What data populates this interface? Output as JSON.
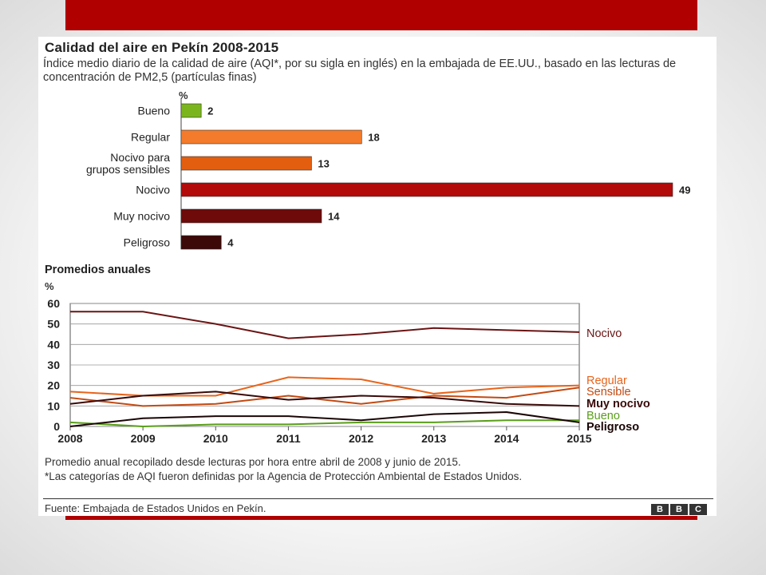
{
  "header": {
    "title": "Calidad del aire en Pekín 2008-2015",
    "subtitle": "Índice medio diario de la calidad de aire (AQI*, por su sigla en inglés) en la embajada de EE.UU., basado en las lecturas de concentración de PM2,5 (partículas finas)"
  },
  "bar_unit": "%",
  "annual_title": "Promedios anuales",
  "line_unit": "%",
  "colors": {
    "bueno": "#7ab51d",
    "regular": "#f47b2b",
    "sensible": "#e35e0f",
    "nocivo": "#b30a0a",
    "muy_nocivo": "#6e0a0a",
    "peligroso": "#3c0808"
  },
  "chart_data": [
    {
      "type": "bar",
      "orientation": "horizontal",
      "title": "Calidad del aire en Pekín 2008-2015",
      "categories": [
        "Bueno",
        "Regular",
        "Nocivo para grupos sensibles",
        "Nocivo",
        "Muy nocivo",
        "Peligroso"
      ],
      "category_lines": [
        [
          "Bueno"
        ],
        [
          "Regular"
        ],
        [
          "Nocivo para",
          "grupos sensibles"
        ],
        [
          "Nocivo"
        ],
        [
          "Muy nocivo"
        ],
        [
          "Peligroso"
        ]
      ],
      "values": [
        2,
        18,
        13,
        49,
        14,
        4
      ],
      "colors": [
        "#7ab51d",
        "#f47b2b",
        "#e35e0f",
        "#b30a0a",
        "#6e0a0a",
        "#3c0808"
      ],
      "xlim": [
        0,
        49
      ],
      "unit": "%",
      "data_labels": true
    },
    {
      "type": "line",
      "title": "Promedios anuales",
      "ylabel": "%",
      "x": [
        2008,
        2009,
        2010,
        2011,
        2012,
        2013,
        2014,
        2015
      ],
      "ylim": [
        0,
        60
      ],
      "yticks": [
        0,
        10,
        20,
        30,
        40,
        50,
        60
      ],
      "grid": true,
      "legend": "right",
      "series": [
        {
          "name": "Nocivo",
          "color": "#6b1414",
          "values": [
            56,
            56,
            50,
            43,
            45,
            48,
            47,
            46
          ]
        },
        {
          "name": "Regular",
          "color": "#e8641b",
          "values": [
            17,
            15,
            15,
            24,
            23,
            16,
            19,
            20
          ]
        },
        {
          "name": "Sensible",
          "color": "#c24a12",
          "values": [
            14,
            10,
            11,
            15,
            11,
            15,
            14,
            19
          ]
        },
        {
          "name": "Muy nocivo",
          "color": "#3a0a0a",
          "values": [
            11,
            15,
            17,
            13,
            15,
            14,
            11,
            10
          ]
        },
        {
          "name": "Bueno",
          "color": "#5a9e1a",
          "values": [
            2,
            0,
            1,
            1,
            2,
            2,
            3,
            3
          ]
        },
        {
          "name": "Peligroso",
          "color": "#1a0505",
          "values": [
            0,
            4,
            5,
            5,
            3,
            6,
            7,
            2
          ]
        }
      ]
    }
  ],
  "footer": {
    "note1": "Promedio anual recopilado desde lecturas por hora entre abril de 2008 y junio de 2015.",
    "note2": "*Las categorías de AQI fueron definidas por la Agencia de Protección Ambiental de Estados Unidos.",
    "source": "Fuente: Embajada de Estados Unidos en Pekín.",
    "logo": [
      "B",
      "B",
      "C"
    ]
  }
}
